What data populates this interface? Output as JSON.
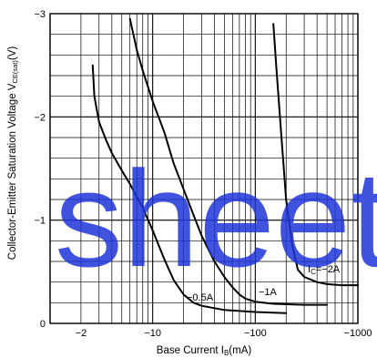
{
  "chart_data": {
    "type": "line",
    "xlabel": "Base Current I",
    "xlabel_sub": "B",
    "xlabel_unit": "(mA)",
    "ylabel": "Collector-Emitter Saturation Voltage V",
    "ylabel_sub": "CE(sat)",
    "ylabel_unit": "(V)",
    "x_scale": "log",
    "xlim": [
      -1,
      -1000
    ],
    "ylim": [
      0,
      -3
    ],
    "x_ticks": [
      {
        "value": -2,
        "label": "−2"
      },
      {
        "value": -10,
        "label": "−10"
      },
      {
        "value": -100,
        "label": "−100"
      },
      {
        "value": -1000,
        "label": "−1000"
      }
    ],
    "y_ticks": [
      {
        "value": 0,
        "label": "0"
      },
      {
        "value": -1,
        "label": "−1"
      },
      {
        "value": -2,
        "label": "−2"
      },
      {
        "value": -3,
        "label": "−3"
      }
    ],
    "grid": true,
    "series": [
      {
        "name": "−0.5A",
        "x": [
          -2.6,
          -2.7,
          -3,
          -3.5,
          -4,
          -5,
          -6,
          -8,
          -10,
          -13,
          -16,
          -20,
          -25,
          -30,
          -50,
          -100,
          -200
        ],
        "y": [
          -2.5,
          -2.2,
          -1.95,
          -1.78,
          -1.65,
          -1.48,
          -1.35,
          -1.12,
          -0.9,
          -0.62,
          -0.42,
          -0.28,
          -0.2,
          -0.17,
          -0.13,
          -0.11,
          -0.1
        ]
      },
      {
        "name": "−1A",
        "x": [
          -6,
          -7,
          -8,
          -10,
          -13,
          -16,
          -20,
          -25,
          -30,
          -40,
          -50,
          -60,
          -70,
          -80,
          -100,
          -150,
          -300,
          -500
        ],
        "y": [
          -2.95,
          -2.65,
          -2.45,
          -2.15,
          -1.85,
          -1.55,
          -1.3,
          -1.05,
          -0.85,
          -0.6,
          -0.45,
          -0.35,
          -0.28,
          -0.24,
          -0.21,
          -0.19,
          -0.18,
          -0.18
        ]
      },
      {
        "name": "I C=−2A",
        "x": [
          -150,
          -160,
          -180,
          -200,
          -230,
          -260,
          -300,
          -400,
          -500,
          -700,
          -1000
        ],
        "y": [
          -2.9,
          -2.5,
          -1.8,
          -1.2,
          -0.75,
          -0.52,
          -0.45,
          -0.4,
          -0.38,
          -0.37,
          -0.37
        ]
      }
    ],
    "curve_labels": [
      "−0.5A",
      "−1A",
      "I",
      "C",
      "=−2A"
    ],
    "watermark": "sheet"
  }
}
